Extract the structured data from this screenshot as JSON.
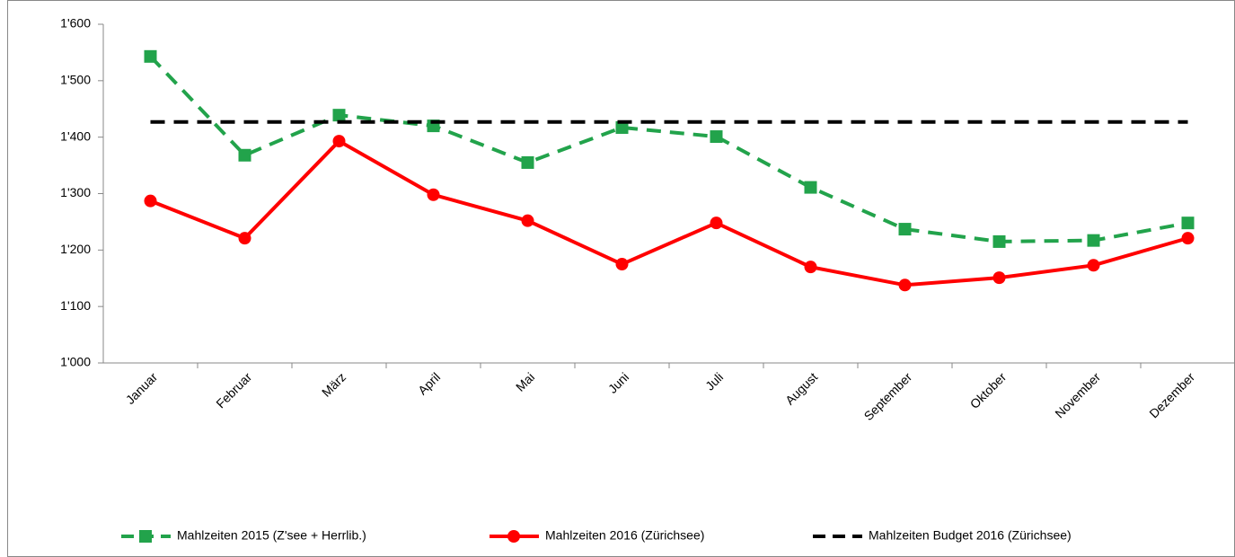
{
  "chart_data": {
    "type": "line",
    "categories": [
      "Januar",
      "Februar",
      "März",
      "April",
      "Mai",
      "Juni",
      "Juli",
      "August",
      "September",
      "Oktober",
      "November",
      "Dezember"
    ],
    "series": [
      {
        "name": "Mahlzeiten 2015 (Z'see + Herrlib.)",
        "color": "#22a34b",
        "dashed": true,
        "marker": "square",
        "values": [
          1543,
          1368,
          1439,
          1420,
          1355,
          1417,
          1401,
          1311,
          1237,
          1215,
          1217,
          1248
        ]
      },
      {
        "name": "Mahlzeiten 2016 (Zürichsee)",
        "color": "#ff0000",
        "dashed": false,
        "marker": "circle",
        "values": [
          1287,
          1221,
          1393,
          1298,
          1252,
          1175,
          1248,
          1170,
          1138,
          1151,
          1173,
          1221
        ]
      },
      {
        "name": "Mahlzeiten Budget 2016 (Zürichsee)",
        "color": "#000000",
        "dashed": true,
        "marker": "none",
        "values": [
          1427,
          1427,
          1427,
          1427,
          1427,
          1427,
          1427,
          1427,
          1427,
          1427,
          1427,
          1427
        ]
      }
    ],
    "ylim": [
      1000,
      1600
    ],
    "yticks": [
      {
        "value": 1000,
        "label": "1'000"
      },
      {
        "value": 1100,
        "label": "1'100"
      },
      {
        "value": 1200,
        "label": "1'200"
      },
      {
        "value": 1300,
        "label": "1'300"
      },
      {
        "value": 1400,
        "label": "1'400"
      },
      {
        "value": 1500,
        "label": "1'500"
      },
      {
        "value": 1600,
        "label": "1'600"
      }
    ],
    "grid": false,
    "legend": "bottom"
  }
}
